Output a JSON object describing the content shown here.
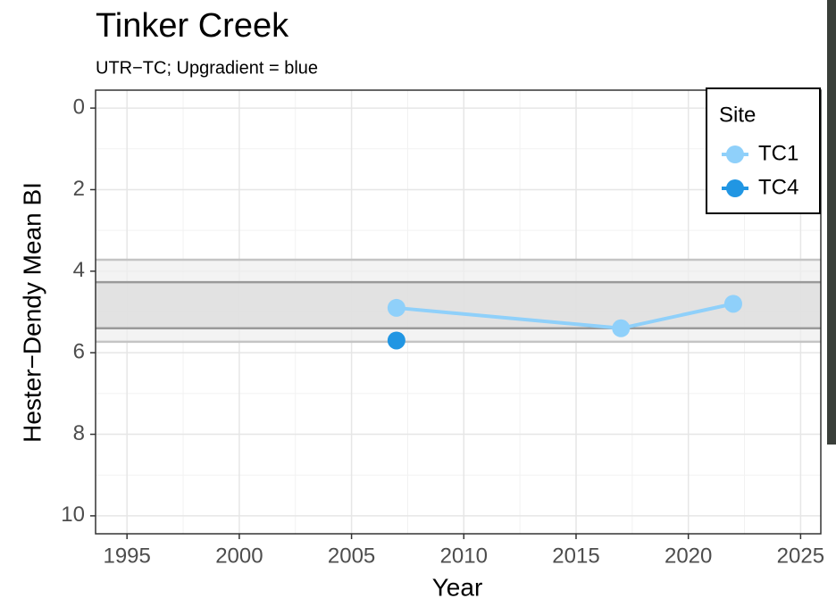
{
  "chart_data": {
    "type": "line",
    "title": "Tinker Creek",
    "subtitle": "UTR−TC; Upgradient = blue",
    "x_label": "Year",
    "y_label": "Hester−Dendy Mean BI",
    "xlim": [
      1993.6,
      2025.9
    ],
    "xticks": [
      1995,
      2000,
      2005,
      2010,
      2015,
      2020,
      2025
    ],
    "ylim": [
      -0.44,
      10.44
    ],
    "yticks": [
      0,
      2,
      4,
      6,
      8,
      10
    ],
    "y_reversed": true,
    "grid": true,
    "bands": [
      {
        "ymin": 3.72,
        "ymax": 5.73,
        "color": "#efefef"
      },
      {
        "ymin": 4.27,
        "ymax": 5.4,
        "color": "#dcdcdc"
      }
    ],
    "legend_title": "Site",
    "legend_position": "top-right",
    "series": [
      {
        "name": "TC1",
        "color": "#8fd0fa",
        "x": [
          2007,
          2017,
          2022
        ],
        "values": [
          4.9,
          5.4,
          4.8
        ]
      },
      {
        "name": "TC4",
        "color": "#2196e3",
        "x": [
          2007
        ],
        "values": [
          5.7
        ]
      }
    ]
  }
}
